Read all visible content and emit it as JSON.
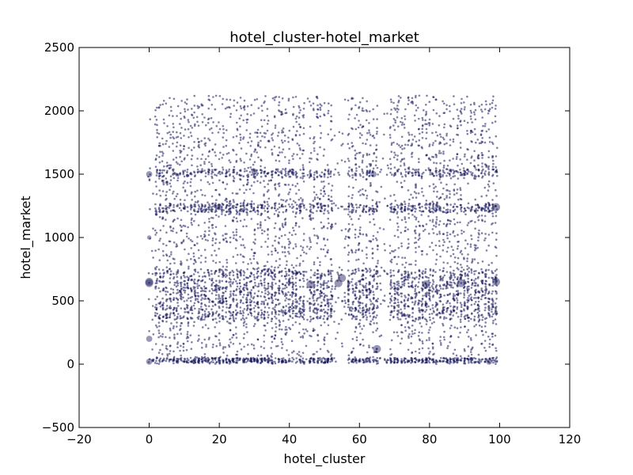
{
  "chart_data": {
    "type": "scatter",
    "title": "hotel_cluster-hotel_market",
    "xlabel": "hotel_cluster",
    "ylabel": "hotel_market",
    "xlim": [
      -20,
      120
    ],
    "ylim": [
      -500,
      2500
    ],
    "xticks": [
      "−20",
      "0",
      "20",
      "40",
      "60",
      "80",
      "100",
      "120"
    ],
    "yticks": [
      "−500",
      "0",
      "500",
      "1000",
      "1500",
      "2000",
      "2500"
    ],
    "grid": false,
    "legend": "none",
    "colors": {
      "point": "#1a1a5e",
      "frame": "#000000"
    },
    "points": [
      {
        "x": 0,
        "y": 650,
        "size": 3
      },
      {
        "x": 0,
        "y": 640,
        "size": 3
      },
      {
        "x": 0,
        "y": 1500,
        "size": 2
      },
      {
        "x": 0,
        "y": 200,
        "size": 2
      },
      {
        "x": 0,
        "y": 20,
        "size": 2
      },
      {
        "x": 0,
        "y": 1000,
        "size": 1
      },
      {
        "x": 46,
        "y": 630,
        "size": 3
      },
      {
        "x": 54,
        "y": 640,
        "size": 3
      },
      {
        "x": 55,
        "y": 680,
        "size": 3
      },
      {
        "x": 65,
        "y": 120,
        "size": 3
      },
      {
        "x": 79,
        "y": 630,
        "size": 3
      },
      {
        "x": 89,
        "y": 640,
        "size": 3
      },
      {
        "x": 99,
        "y": 1240,
        "size": 3
      },
      {
        "x": 99,
        "y": 650,
        "size": 3
      },
      {
        "x": 64,
        "y": 1500,
        "size": 2
      },
      {
        "x": 20,
        "y": 1240,
        "size": 2
      },
      {
        "x": 30,
        "y": 1520,
        "size": 2
      },
      {
        "x": 97,
        "y": 20,
        "size": 2
      }
    ]
  }
}
